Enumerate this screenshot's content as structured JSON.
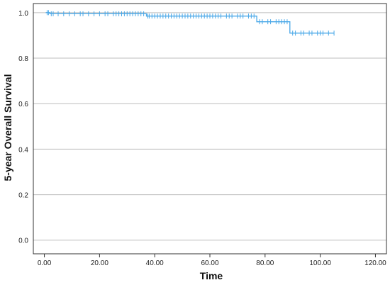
{
  "chart_data": {
    "type": "line",
    "title": "",
    "xlabel": "Time",
    "ylabel": "5-year Overall Survival",
    "xlim": [
      -4,
      124
    ],
    "ylim": [
      -0.06,
      1.04
    ],
    "xticks": [
      0,
      20,
      40,
      60,
      80,
      100,
      120
    ],
    "xtick_labels": [
      "0.00",
      "20.00",
      "40.00",
      "60.00",
      "80.00",
      "100.00",
      "120.00"
    ],
    "yticks": [
      0,
      0.2,
      0.4,
      0.6,
      0.8,
      1.0
    ],
    "ytick_labels": [
      "0.0",
      "0.2",
      "0.4",
      "0.6",
      "0.8",
      "1.0"
    ],
    "grid": "horizontal",
    "line_color": "#4aa8e8",
    "series": [
      {
        "step": [
          [
            0.5,
            1.0
          ],
          [
            2.0,
            1.0
          ],
          [
            2.0,
            0.995
          ],
          [
            37.0,
            0.995
          ],
          [
            37.0,
            0.985
          ],
          [
            77.0,
            0.985
          ],
          [
            77.0,
            0.96
          ],
          [
            89.0,
            0.96
          ],
          [
            89.0,
            0.91
          ],
          [
            105.0,
            0.91
          ]
        ],
        "censored": [
          [
            1.0,
            1.0
          ],
          [
            1.5,
            1.0
          ],
          [
            2.5,
            0.995
          ],
          [
            3.2,
            0.995
          ],
          [
            5,
            0.995
          ],
          [
            7,
            0.995
          ],
          [
            9,
            0.995
          ],
          [
            11,
            0.995
          ],
          [
            13,
            0.995
          ],
          [
            14,
            0.995
          ],
          [
            16,
            0.995
          ],
          [
            18,
            0.995
          ],
          [
            20,
            0.995
          ],
          [
            22,
            0.995
          ],
          [
            23,
            0.995
          ],
          [
            25,
            0.995
          ],
          [
            26,
            0.995
          ],
          [
            27,
            0.995
          ],
          [
            28,
            0.995
          ],
          [
            29,
            0.995
          ],
          [
            30,
            0.995
          ],
          [
            31,
            0.995
          ],
          [
            32,
            0.995
          ],
          [
            33,
            0.995
          ],
          [
            34,
            0.995
          ],
          [
            35,
            0.995
          ],
          [
            36,
            0.995
          ],
          [
            37.5,
            0.985
          ],
          [
            38,
            0.985
          ],
          [
            39,
            0.985
          ],
          [
            40,
            0.985
          ],
          [
            41,
            0.985
          ],
          [
            42,
            0.985
          ],
          [
            43,
            0.985
          ],
          [
            44,
            0.985
          ],
          [
            45,
            0.985
          ],
          [
            46,
            0.985
          ],
          [
            47,
            0.985
          ],
          [
            48,
            0.985
          ],
          [
            49,
            0.985
          ],
          [
            50,
            0.985
          ],
          [
            51,
            0.985
          ],
          [
            52,
            0.985
          ],
          [
            53,
            0.985
          ],
          [
            54,
            0.985
          ],
          [
            55,
            0.985
          ],
          [
            56,
            0.985
          ],
          [
            57,
            0.985
          ],
          [
            58,
            0.985
          ],
          [
            59,
            0.985
          ],
          [
            60,
            0.985
          ],
          [
            61,
            0.985
          ],
          [
            62,
            0.985
          ],
          [
            63,
            0.985
          ],
          [
            64,
            0.985
          ],
          [
            66,
            0.985
          ],
          [
            67,
            0.985
          ],
          [
            68,
            0.985
          ],
          [
            70,
            0.985
          ],
          [
            71,
            0.985
          ],
          [
            72,
            0.985
          ],
          [
            74,
            0.985
          ],
          [
            75,
            0.985
          ],
          [
            76,
            0.985
          ],
          [
            78,
            0.96
          ],
          [
            79,
            0.96
          ],
          [
            81,
            0.96
          ],
          [
            82,
            0.96
          ],
          [
            84,
            0.96
          ],
          [
            85,
            0.96
          ],
          [
            86,
            0.96
          ],
          [
            87,
            0.96
          ],
          [
            88,
            0.96
          ],
          [
            90,
            0.91
          ],
          [
            91,
            0.91
          ],
          [
            93,
            0.91
          ],
          [
            94,
            0.91
          ],
          [
            96,
            0.91
          ],
          [
            97,
            0.91
          ],
          [
            99,
            0.91
          ],
          [
            100,
            0.91
          ],
          [
            101,
            0.91
          ],
          [
            103,
            0.91
          ],
          [
            105,
            0.91
          ]
        ]
      }
    ]
  }
}
